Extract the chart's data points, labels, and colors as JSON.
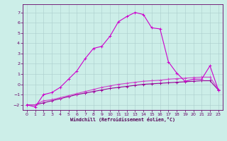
{
  "xlabel": "Windchill (Refroidissement éolien,°C)",
  "bg_color": "#cceee8",
  "grid_color": "#aacccc",
  "xlim": [
    -0.5,
    23.5
  ],
  "ylim": [
    -2.5,
    7.8
  ],
  "xticks": [
    0,
    1,
    2,
    3,
    4,
    5,
    6,
    7,
    8,
    9,
    10,
    11,
    12,
    13,
    14,
    15,
    16,
    17,
    18,
    19,
    20,
    21,
    22,
    23
  ],
  "yticks": [
    -2,
    -1,
    0,
    1,
    2,
    3,
    4,
    5,
    6,
    7
  ],
  "series1_color": "#990099",
  "series2_color": "#cc44cc",
  "series3_color": "#cc00cc",
  "series1_x": [
    0,
    1,
    2,
    3,
    4,
    5,
    6,
    7,
    8,
    9,
    10,
    11,
    12,
    13,
    14,
    15,
    16,
    17,
    18,
    19,
    20,
    21,
    22,
    23
  ],
  "series1_y": [
    -2.0,
    -2.0,
    -1.8,
    -1.6,
    -1.4,
    -1.2,
    -1.0,
    -0.85,
    -0.7,
    -0.55,
    -0.4,
    -0.3,
    -0.2,
    -0.1,
    0.0,
    0.05,
    0.1,
    0.15,
    0.2,
    0.25,
    0.3,
    0.35,
    0.35,
    -0.55
  ],
  "series2_x": [
    0,
    1,
    2,
    3,
    4,
    5,
    6,
    7,
    8,
    9,
    10,
    11,
    12,
    13,
    14,
    15,
    16,
    17,
    18,
    19,
    20,
    21,
    22,
    23
  ],
  "series2_y": [
    -2.0,
    -2.0,
    -1.6,
    -1.5,
    -1.3,
    -1.1,
    -0.9,
    -0.7,
    -0.5,
    -0.3,
    -0.15,
    -0.0,
    0.1,
    0.2,
    0.3,
    0.35,
    0.4,
    0.5,
    0.55,
    0.6,
    0.65,
    0.7,
    0.7,
    -0.5
  ],
  "series3_x": [
    0,
    1,
    2,
    3,
    4,
    5,
    6,
    7,
    8,
    9,
    10,
    11,
    12,
    13,
    14,
    15,
    16,
    17,
    18,
    19,
    20,
    21,
    22,
    23
  ],
  "series3_y": [
    -2.0,
    -2.2,
    -1.0,
    -0.8,
    -0.3,
    0.5,
    1.3,
    2.5,
    3.5,
    3.7,
    4.7,
    6.1,
    6.6,
    7.0,
    6.8,
    5.5,
    5.4,
    2.2,
    1.1,
    0.3,
    0.5,
    0.5,
    1.8,
    -0.55
  ]
}
